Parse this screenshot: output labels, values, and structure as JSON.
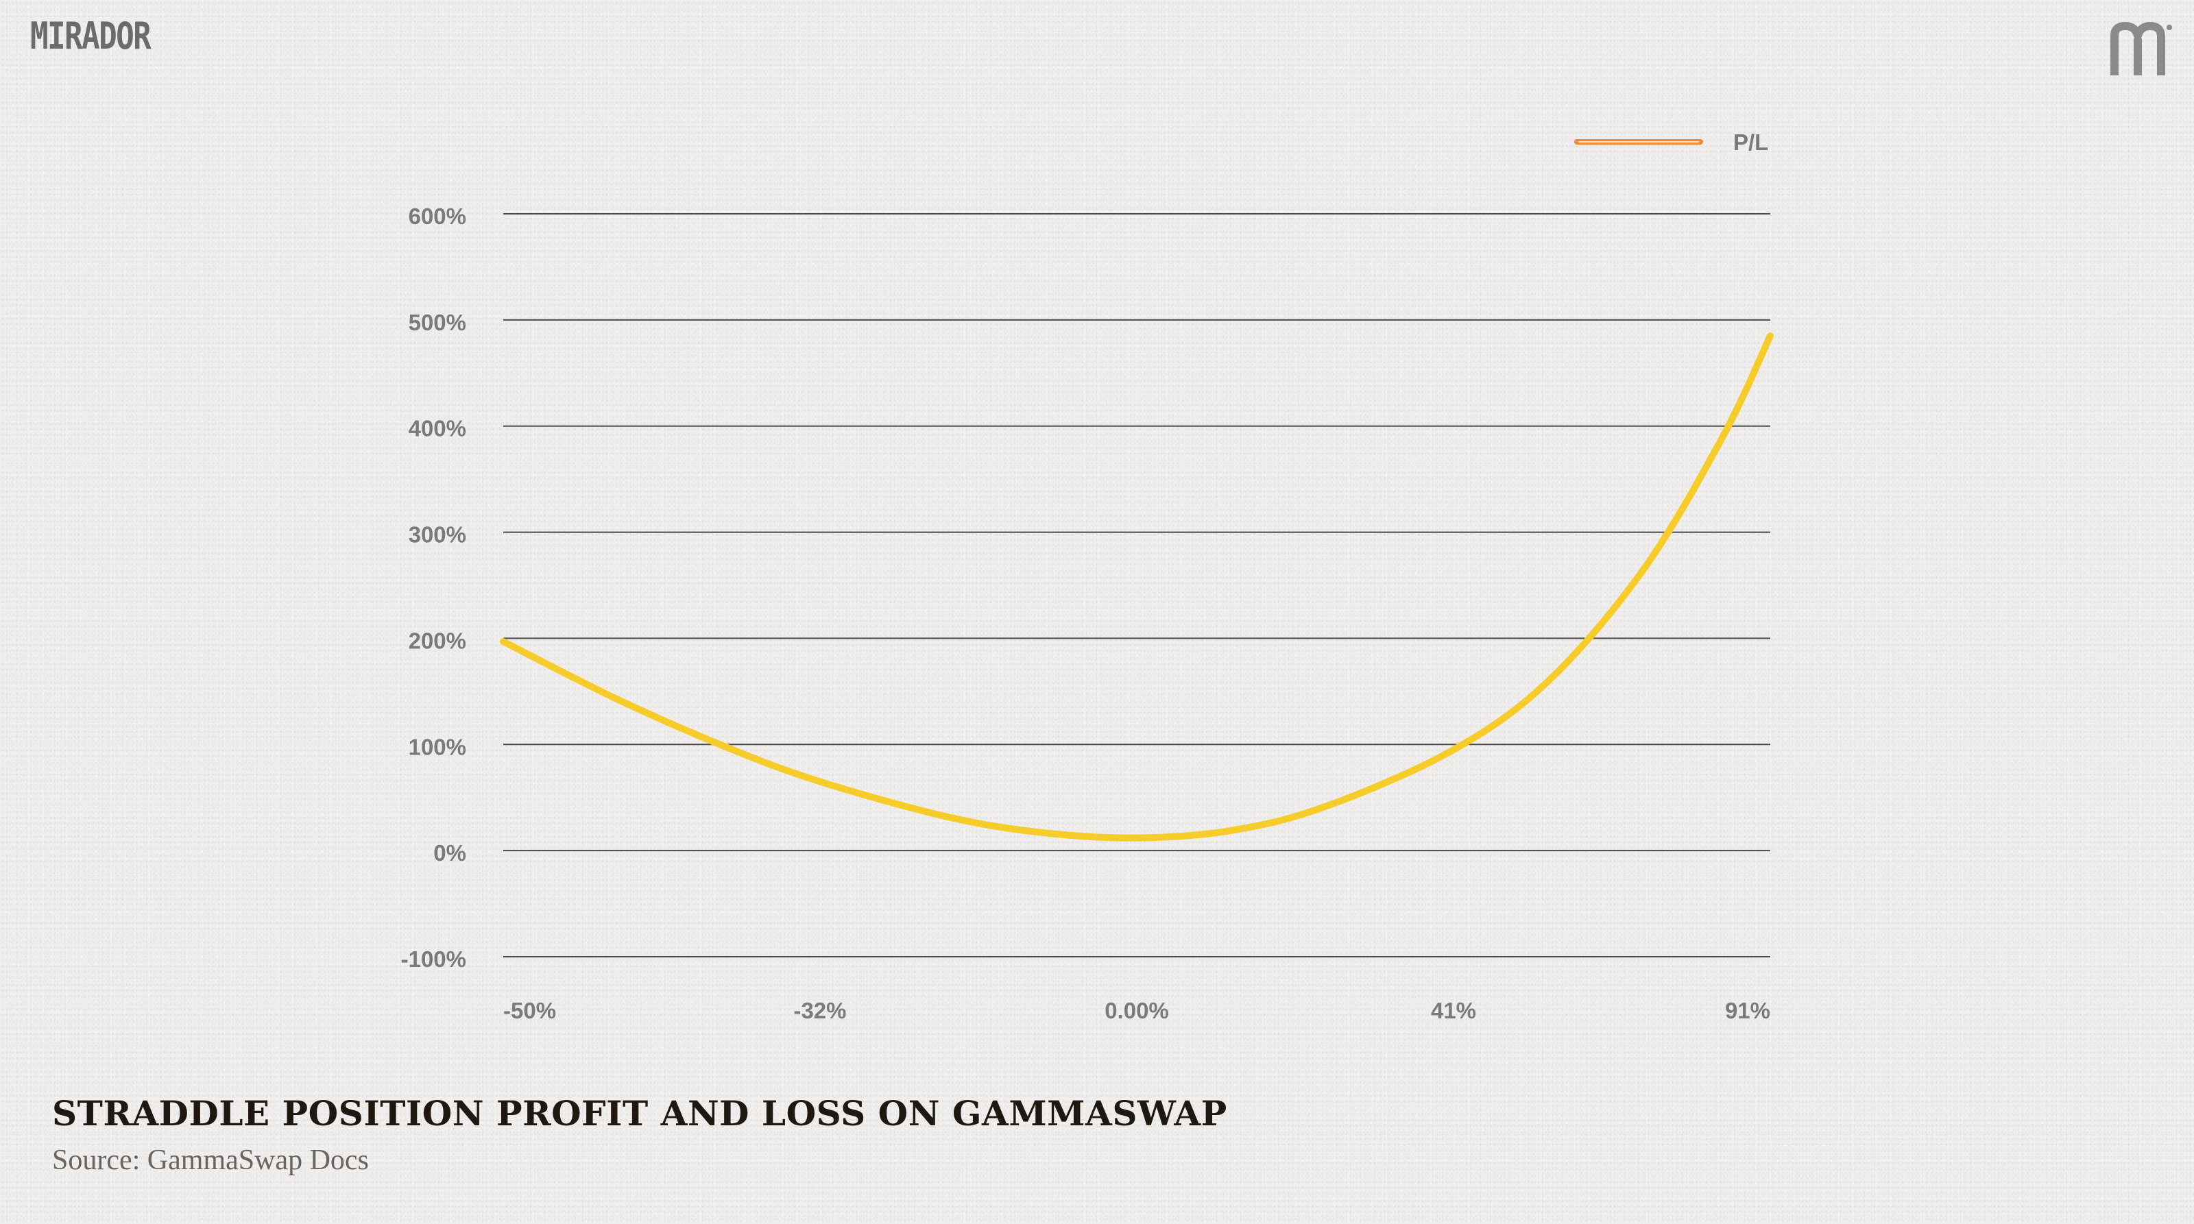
{
  "brand": {
    "wordmark": "MIRADOR",
    "mark_icon": "mirador-m-icon"
  },
  "caption": {
    "title": "STRADDLE POSITION PROFIT AND LOSS ON GAMMASWAP",
    "source": "Source: GammaSwap Docs"
  },
  "colors": {
    "background": "#efeeec",
    "line": "#f6cc2a",
    "legend_swatch": "#f08a2c",
    "grid": "#4a4a4a",
    "tick_text": "#7a7a7a",
    "title_text": "#1f1810",
    "source_text": "#6a6460",
    "logo": "#6b6b6b"
  },
  "chart_data": {
    "type": "line",
    "title": "",
    "xlabel": "",
    "ylabel": "",
    "legend": {
      "placement": "top-right",
      "entries": [
        "P/L"
      ]
    },
    "grid": true,
    "x_tick_labels": [
      "-50%",
      "-32%",
      "0.00%",
      "41%",
      "91%"
    ],
    "y_tick_labels": [
      "-100%",
      "0%",
      "100%",
      "200%",
      "300%",
      "400%",
      "500%",
      "600%"
    ],
    "ylim": [
      -100,
      600
    ],
    "y_ticks": [
      -100,
      0,
      100,
      200,
      300,
      400,
      500,
      600
    ],
    "series": [
      {
        "name": "P/L",
        "x_unit": "tick index (0 = -50%, 4 = 91%)",
        "x": [
          0,
          0.35,
          0.7,
          1.0,
          1.4,
          1.7,
          2.0,
          2.3,
          2.6,
          3.0,
          3.3,
          3.6,
          3.85,
          4.0
        ],
        "values": [
          197,
          144,
          98,
          65,
          32,
          17,
          12,
          19,
          42,
          95,
          160,
          265,
          390,
          485
        ]
      }
    ]
  }
}
